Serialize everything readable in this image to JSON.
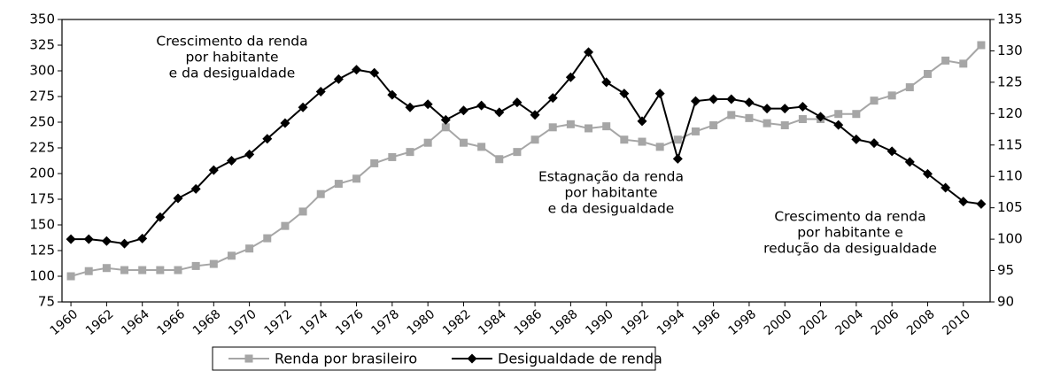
{
  "chart_data": {
    "type": "line",
    "x": [
      1960,
      1961,
      1962,
      1963,
      1964,
      1965,
      1966,
      1967,
      1968,
      1969,
      1970,
      1971,
      1972,
      1973,
      1974,
      1975,
      1976,
      1977,
      1978,
      1979,
      1980,
      1981,
      1982,
      1983,
      1984,
      1985,
      1986,
      1987,
      1988,
      1989,
      1990,
      1991,
      1992,
      1993,
      1994,
      1995,
      1996,
      1997,
      1998,
      1999,
      2000,
      2001,
      2002,
      2003,
      2004,
      2005,
      2006,
      2007,
      2008,
      2009,
      2010,
      2011
    ],
    "series": [
      {
        "name": "Renda por brasileiro",
        "color": "#a6a6a6",
        "marker": "square",
        "values": [
          100,
          105,
          108,
          106,
          106,
          106,
          106,
          110,
          112,
          120,
          127,
          137,
          149,
          163,
          180,
          190,
          195,
          210,
          216,
          221,
          230,
          245,
          230,
          226,
          214,
          221,
          233,
          245,
          248,
          244,
          246,
          233,
          231,
          226,
          233,
          241,
          247,
          257,
          254,
          249,
          247,
          253,
          253,
          258,
          258,
          271,
          276,
          284,
          297,
          310,
          307,
          325
        ]
      },
      {
        "name": "Desigualdade de renda",
        "color": "#000000",
        "marker": "diamond",
        "axis": "y2",
        "values": [
          100,
          100,
          99.7,
          99.3,
          100.1,
          103.5,
          106.5,
          108,
          111,
          112.5,
          113.5,
          116,
          118.5,
          121,
          123.5,
          125.5,
          127,
          126.5,
          123,
          121,
          121.5,
          119,
          120.5,
          121.3,
          120.2,
          121.8,
          119.8,
          122.5,
          125.8,
          129.8,
          125,
          123.2,
          118.8,
          123.2,
          112.8,
          122,
          122.3,
          122.3,
          121.8,
          120.8,
          120.8,
          121.1,
          119.5,
          118.2,
          115.9,
          115.3,
          114,
          112.3,
          110.4,
          108.2,
          106,
          105.6
        ]
      }
    ],
    "xlim": [
      1959.5,
      2011.5
    ],
    "xticks": [
      1960,
      1962,
      1964,
      1966,
      1968,
      1970,
      1972,
      1974,
      1976,
      1978,
      1980,
      1982,
      1984,
      1986,
      1988,
      1990,
      1992,
      1994,
      1996,
      1998,
      2000,
      2002,
      2004,
      2006,
      2008,
      2010
    ],
    "ylim": [
      75,
      350
    ],
    "yticks": [
      75,
      100,
      125,
      150,
      175,
      200,
      225,
      250,
      275,
      300,
      325,
      350
    ],
    "y2lim": [
      90,
      135
    ],
    "y2ticks": [
      90,
      95,
      100,
      105,
      110,
      115,
      120,
      125,
      130,
      135
    ],
    "annotations": [
      [
        "Crescimento da renda",
        "por habitante",
        "e da desigualdade"
      ],
      [
        "Estagnação da renda",
        "por habitante",
        "e da desigualdade"
      ],
      [
        "Crescimento da renda",
        "por habitante e",
        "redução da desigualdade"
      ]
    ],
    "legend": "bottom"
  }
}
